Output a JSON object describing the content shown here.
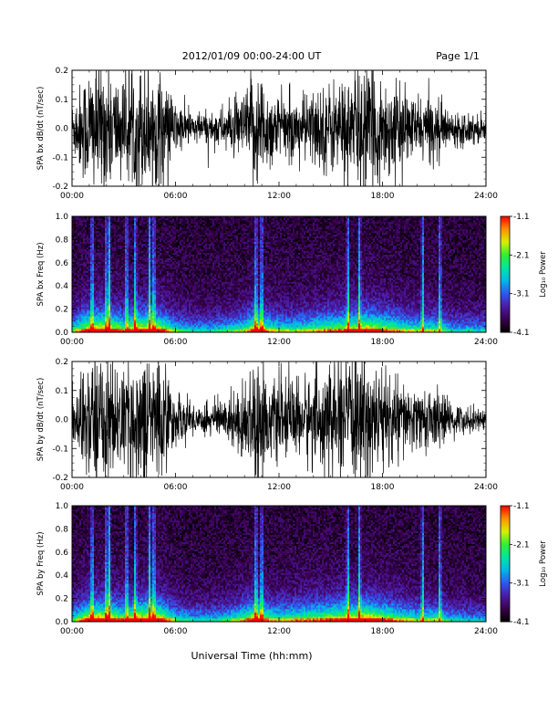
{
  "header": {
    "title": "2012/01/09  00:00-24:00 UT",
    "page": "Page 1/1"
  },
  "footer": {
    "xlabel": "Universal Time (hh:mm)"
  },
  "colors": {
    "trace": "#000000",
    "background": "#ffffff",
    "colormap": [
      "#000000",
      "#3a004e",
      "#4c1aa4",
      "#2e58f0",
      "#00b8e8",
      "#00e6a0",
      "#30f030",
      "#d8f000",
      "#ff9000",
      "#ff0000"
    ]
  },
  "chart_data": [
    {
      "type": "line",
      "name": "bx-waveform",
      "ylabel": "SPA bx dB/dt (nT/sec)",
      "xlim": [
        "00:00",
        "24:00"
      ],
      "xticks": [
        "00:00",
        "06:00",
        "12:00",
        "18:00",
        "24:00"
      ],
      "ylim": [
        -0.2,
        0.2
      ],
      "yticks": [
        "0.2",
        "0.1",
        "0.0",
        "-0.1",
        "-0.2"
      ],
      "envelope": [
        [
          "00:00",
          0.08
        ],
        [
          "01:00",
          0.2
        ],
        [
          "02:00",
          0.2
        ],
        [
          "03:00",
          0.14
        ],
        [
          "04:00",
          0.2
        ],
        [
          "05:00",
          0.18
        ],
        [
          "06:00",
          0.08
        ],
        [
          "07:00",
          0.05
        ],
        [
          "08:00",
          0.05
        ],
        [
          "09:00",
          0.07
        ],
        [
          "10:00",
          0.1
        ],
        [
          "10:40",
          0.2
        ],
        [
          "11:30",
          0.12
        ],
        [
          "12:00",
          0.1
        ],
        [
          "13:00",
          0.09
        ],
        [
          "14:00",
          0.12
        ],
        [
          "15:00",
          0.14
        ],
        [
          "16:00",
          0.16
        ],
        [
          "17:00",
          0.2
        ],
        [
          "18:00",
          0.16
        ],
        [
          "19:00",
          0.12
        ],
        [
          "20:00",
          0.09
        ],
        [
          "21:00",
          0.1
        ],
        [
          "22:00",
          0.05
        ],
        [
          "23:00",
          0.05
        ],
        [
          "24:00",
          0.04
        ]
      ]
    },
    {
      "type": "heatmap",
      "name": "bx-spectrogram",
      "ylabel": "SPA bx Freq (Hz)",
      "xlim": [
        "00:00",
        "24:00"
      ],
      "xticks": [
        "00:00",
        "06:00",
        "12:00",
        "18:00",
        "24:00"
      ],
      "ylim": [
        0.0,
        1.0
      ],
      "yticks": [
        "1.0",
        "0.8",
        "0.6",
        "0.4",
        "0.2",
        "0.0"
      ],
      "colorbar": {
        "label": "Log₁₀ Power",
        "range": [
          -4.1,
          -1.1
        ],
        "ticks": [
          "-1.1",
          "-2.1",
          "-3.1",
          "-4.1"
        ]
      },
      "burst_times": [
        "01:10",
        "02:00",
        "02:10",
        "03:10",
        "03:40",
        "04:30",
        "04:45",
        "10:40",
        "11:00",
        "16:00",
        "16:40",
        "20:20",
        "21:20"
      ]
    },
    {
      "type": "line",
      "name": "by-waveform",
      "ylabel": "SPA by dB/dt (nT/sec)",
      "xlim": [
        "00:00",
        "24:00"
      ],
      "xticks": [
        "00:00",
        "06:00",
        "12:00",
        "18:00",
        "24:00"
      ],
      "ylim": [
        -0.2,
        0.2
      ],
      "yticks": [
        "0.2",
        "0.1",
        "0.0",
        "-0.1",
        "-0.2"
      ],
      "envelope": [
        [
          "00:00",
          0.07
        ],
        [
          "01:00",
          0.2
        ],
        [
          "02:00",
          0.2
        ],
        [
          "03:00",
          0.14
        ],
        [
          "04:00",
          0.2
        ],
        [
          "05:00",
          0.2
        ],
        [
          "06:00",
          0.08
        ],
        [
          "07:00",
          0.05
        ],
        [
          "08:00",
          0.05
        ],
        [
          "09:00",
          0.07
        ],
        [
          "10:00",
          0.12
        ],
        [
          "10:40",
          0.2
        ],
        [
          "11:30",
          0.12
        ],
        [
          "12:00",
          0.11
        ],
        [
          "13:00",
          0.12
        ],
        [
          "14:00",
          0.14
        ],
        [
          "15:00",
          0.16
        ],
        [
          "16:00",
          0.18
        ],
        [
          "17:00",
          0.2
        ],
        [
          "18:00",
          0.16
        ],
        [
          "19:00",
          0.12
        ],
        [
          "20:00",
          0.09
        ],
        [
          "21:00",
          0.1
        ],
        [
          "22:00",
          0.05
        ],
        [
          "23:00",
          0.04
        ],
        [
          "24:00",
          0.03
        ]
      ]
    },
    {
      "type": "heatmap",
      "name": "by-spectrogram",
      "ylabel": "SPA by Freq (Hz)",
      "xlim": [
        "00:00",
        "24:00"
      ],
      "xticks": [
        "00:00",
        "06:00",
        "12:00",
        "18:00",
        "24:00"
      ],
      "ylim": [
        0.0,
        1.0
      ],
      "yticks": [
        "1.0",
        "0.8",
        "0.6",
        "0.4",
        "0.2",
        "0.0"
      ],
      "colorbar": {
        "label": "Log₁₀ Power",
        "range": [
          -4.1,
          -1.1
        ],
        "ticks": [
          "-1.1",
          "-2.1",
          "-3.1",
          "-4.1"
        ]
      },
      "burst_times": [
        "01:10",
        "02:00",
        "02:10",
        "03:10",
        "03:40",
        "04:30",
        "04:45",
        "10:40",
        "11:00",
        "16:00",
        "16:40",
        "20:20",
        "21:20"
      ]
    }
  ]
}
